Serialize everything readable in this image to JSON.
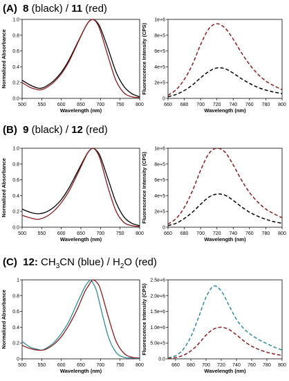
{
  "panels": [
    {
      "label": "(A)",
      "title_parts": [
        {
          "text": "8",
          "bold": true
        },
        {
          "text": " (black) / ",
          "bold": false
        },
        {
          "text": "11",
          "bold": true
        },
        {
          "text": " (red)",
          "bold": false
        }
      ]
    },
    {
      "label": "(B)",
      "title_parts": [
        {
          "text": "9",
          "bold": true
        },
        {
          "text": " (black) / ",
          "bold": false
        },
        {
          "text": "12",
          "bold": true
        },
        {
          "text": " (red)",
          "bold": false
        }
      ]
    },
    {
      "label": "(C)",
      "title_parts": [
        {
          "text": "12:",
          "bold": true
        },
        {
          "text": " CH",
          "bold": false
        },
        {
          "text": "3",
          "bold": false,
          "sub": true
        },
        {
          "text": "CN (blue) / H",
          "bold": false
        },
        {
          "text": "2",
          "bold": false,
          "sub": true
        },
        {
          "text": "O (red)",
          "bold": false
        }
      ]
    }
  ],
  "colors": {
    "black": "#000000",
    "red": "#8b1a1a",
    "blue": "#2e8b9a"
  },
  "chart_data": [
    {
      "type": "line",
      "panel": "A",
      "position": "left",
      "xlabel": "Wavelength (nm)",
      "ylabel": "Normalized Absorbance",
      "xlim": [
        500,
        800
      ],
      "ylim": [
        0,
        1.0
      ],
      "xticks": [
        "500",
        "550",
        "600",
        "650",
        "700",
        "750",
        "800"
      ],
      "yticks": [
        "0.0",
        "0.2",
        "0.4",
        "0.6",
        "0.8",
        "1.0"
      ],
      "x": [
        500,
        520,
        540,
        550,
        560,
        580,
        600,
        620,
        640,
        660,
        670,
        680,
        690,
        700,
        720,
        740,
        760,
        780,
        800
      ],
      "series": [
        {
          "color": "black",
          "dash": false,
          "values": [
            0.23,
            0.17,
            0.13,
            0.13,
            0.15,
            0.22,
            0.33,
            0.49,
            0.69,
            0.89,
            0.97,
            1.0,
            0.97,
            0.89,
            0.62,
            0.33,
            0.15,
            0.06,
            0.02
          ]
        },
        {
          "color": "red",
          "dash": false,
          "values": [
            0.2,
            0.14,
            0.11,
            0.11,
            0.13,
            0.2,
            0.31,
            0.47,
            0.68,
            0.89,
            0.97,
            1.0,
            0.96,
            0.85,
            0.52,
            0.22,
            0.07,
            0.02,
            0.01
          ]
        }
      ]
    },
    {
      "type": "line",
      "panel": "A",
      "position": "right",
      "xlabel": "Wavelength (nm)",
      "ylabel": "Fluorescence Intensity (CPS)",
      "xlim": [
        660,
        800
      ],
      "ylim": [
        0,
        1000000
      ],
      "xticks": [
        "660",
        "680",
        "700",
        "720",
        "740",
        "760",
        "780",
        "800"
      ],
      "yticks": [
        "0",
        "2e+5",
        "4e+5",
        "6e+5",
        "8e+5",
        "1e+6"
      ],
      "x": [
        660,
        670,
        680,
        690,
        700,
        710,
        720,
        730,
        740,
        750,
        760,
        770,
        780,
        790,
        800
      ],
      "series": [
        {
          "color": "black",
          "dash": true,
          "values": [
            20000,
            50000,
            100000,
            170000,
            260000,
            340000,
            385000,
            375000,
            320000,
            250000,
            190000,
            140000,
            105000,
            80000,
            60000
          ]
        },
        {
          "color": "red",
          "dash": true,
          "values": [
            40000,
            110000,
            240000,
            430000,
            680000,
            880000,
            945000,
            890000,
            750000,
            580000,
            430000,
            310000,
            220000,
            160000,
            110000
          ]
        }
      ]
    },
    {
      "type": "line",
      "panel": "B",
      "position": "left",
      "xlabel": "Wavelength (nm)",
      "ylabel": "Normalized Absorbance",
      "xlim": [
        500,
        800
      ],
      "ylim": [
        0,
        1.0
      ],
      "xticks": [
        "500",
        "550",
        "600",
        "650",
        "700",
        "750",
        "800"
      ],
      "yticks": [
        "0.0",
        "0.2",
        "0.4",
        "0.6",
        "0.8",
        "1.0"
      ],
      "x": [
        500,
        520,
        540,
        560,
        580,
        600,
        620,
        640,
        660,
        670,
        680,
        690,
        700,
        720,
        740,
        760,
        780,
        800
      ],
      "series": [
        {
          "color": "black",
          "dash": false,
          "values": [
            0.23,
            0.19,
            0.17,
            0.19,
            0.25,
            0.35,
            0.5,
            0.69,
            0.88,
            0.96,
            1.0,
            0.97,
            0.89,
            0.6,
            0.31,
            0.13,
            0.05,
            0.02
          ]
        },
        {
          "color": "red",
          "dash": false,
          "values": [
            0.15,
            0.12,
            0.1,
            0.13,
            0.2,
            0.31,
            0.46,
            0.66,
            0.87,
            0.96,
            1.0,
            0.96,
            0.85,
            0.49,
            0.2,
            0.06,
            0.02,
            0.01
          ]
        }
      ]
    },
    {
      "type": "line",
      "panel": "B",
      "position": "right",
      "xlabel": "Wavelength (nm)",
      "ylabel": "Fluorescence Intensity (CPS)",
      "xlim": [
        660,
        800
      ],
      "ylim": [
        0,
        1000000
      ],
      "xticks": [
        "660",
        "680",
        "700",
        "720",
        "740",
        "760",
        "780",
        "800"
      ],
      "yticks": [
        "0",
        "2e+5",
        "4e+5",
        "6e+5",
        "8e+5",
        "1e+6"
      ],
      "x": [
        660,
        670,
        680,
        690,
        700,
        710,
        720,
        730,
        740,
        750,
        760,
        770,
        780,
        790,
        800
      ],
      "series": [
        {
          "color": "black",
          "dash": true,
          "values": [
            20000,
            50000,
            110000,
            190000,
            290000,
            380000,
            420000,
            405000,
            340000,
            260000,
            190000,
            140000,
            100000,
            70000,
            50000
          ]
        },
        {
          "color": "red",
          "dash": true,
          "values": [
            40000,
            110000,
            250000,
            460000,
            720000,
            930000,
            1000000,
            950000,
            790000,
            600000,
            440000,
            320000,
            230000,
            170000,
            120000
          ]
        }
      ]
    },
    {
      "type": "line",
      "panel": "C",
      "position": "left",
      "xlabel": "Wavelength (nm)",
      "ylabel": "Normalized Absorbance",
      "xlim": [
        500,
        800
      ],
      "ylim": [
        0,
        1.0
      ],
      "xticks": [
        "500",
        "550",
        "600",
        "650",
        "700",
        "750",
        "800"
      ],
      "yticks": [
        "0",
        "0.2",
        "0.4",
        "0.6",
        "0.8",
        "1"
      ],
      "x": [
        500,
        520,
        540,
        550,
        560,
        580,
        600,
        620,
        640,
        660,
        670,
        675,
        680,
        690,
        700,
        720,
        740,
        760,
        780,
        800
      ],
      "series": [
        {
          "color": "blue",
          "dash": false,
          "values": [
            0.22,
            0.15,
            0.12,
            0.11,
            0.13,
            0.2,
            0.32,
            0.48,
            0.7,
            0.91,
            0.98,
            1.0,
            0.97,
            0.86,
            0.66,
            0.28,
            0.08,
            0.02,
            0.01,
            0.0
          ]
        },
        {
          "color": "red",
          "dash": false,
          "values": [
            0.17,
            0.13,
            0.11,
            0.11,
            0.12,
            0.18,
            0.28,
            0.43,
            0.62,
            0.85,
            0.93,
            0.97,
            1.0,
            0.97,
            0.88,
            0.53,
            0.22,
            0.07,
            0.02,
            0.01
          ]
        }
      ]
    },
    {
      "type": "line",
      "panel": "C",
      "position": "right",
      "xlabel": "Wavelength (nm)",
      "ylabel": "Fluorescence Intensity (CPS)",
      "xlim": [
        650,
        800
      ],
      "ylim": [
        0,
        2500000
      ],
      "xticks": [
        "660",
        "680",
        "700",
        "720",
        "740",
        "760",
        "780",
        "800"
      ],
      "yticks": [
        "0.0",
        "5.0e+5",
        "1.0e+6",
        "1.5e+6",
        "2.0e+6",
        "2.5e+6"
      ],
      "x": [
        650,
        660,
        670,
        680,
        690,
        700,
        710,
        720,
        730,
        740,
        750,
        760,
        770,
        780,
        790,
        800
      ],
      "series": [
        {
          "color": "blue",
          "dash": true,
          "values": [
            30000,
            100000,
            300000,
            700000,
            1300000,
            1950000,
            2300000,
            2150000,
            1700000,
            1250000,
            950000,
            750000,
            600000,
            480000,
            370000,
            280000
          ]
        },
        {
          "color": "red",
          "dash": true,
          "values": [
            10000,
            40000,
            110000,
            250000,
            470000,
            750000,
            940000,
            1000000,
            930000,
            760000,
            560000,
            400000,
            290000,
            210000,
            150000,
            110000
          ]
        }
      ]
    }
  ]
}
